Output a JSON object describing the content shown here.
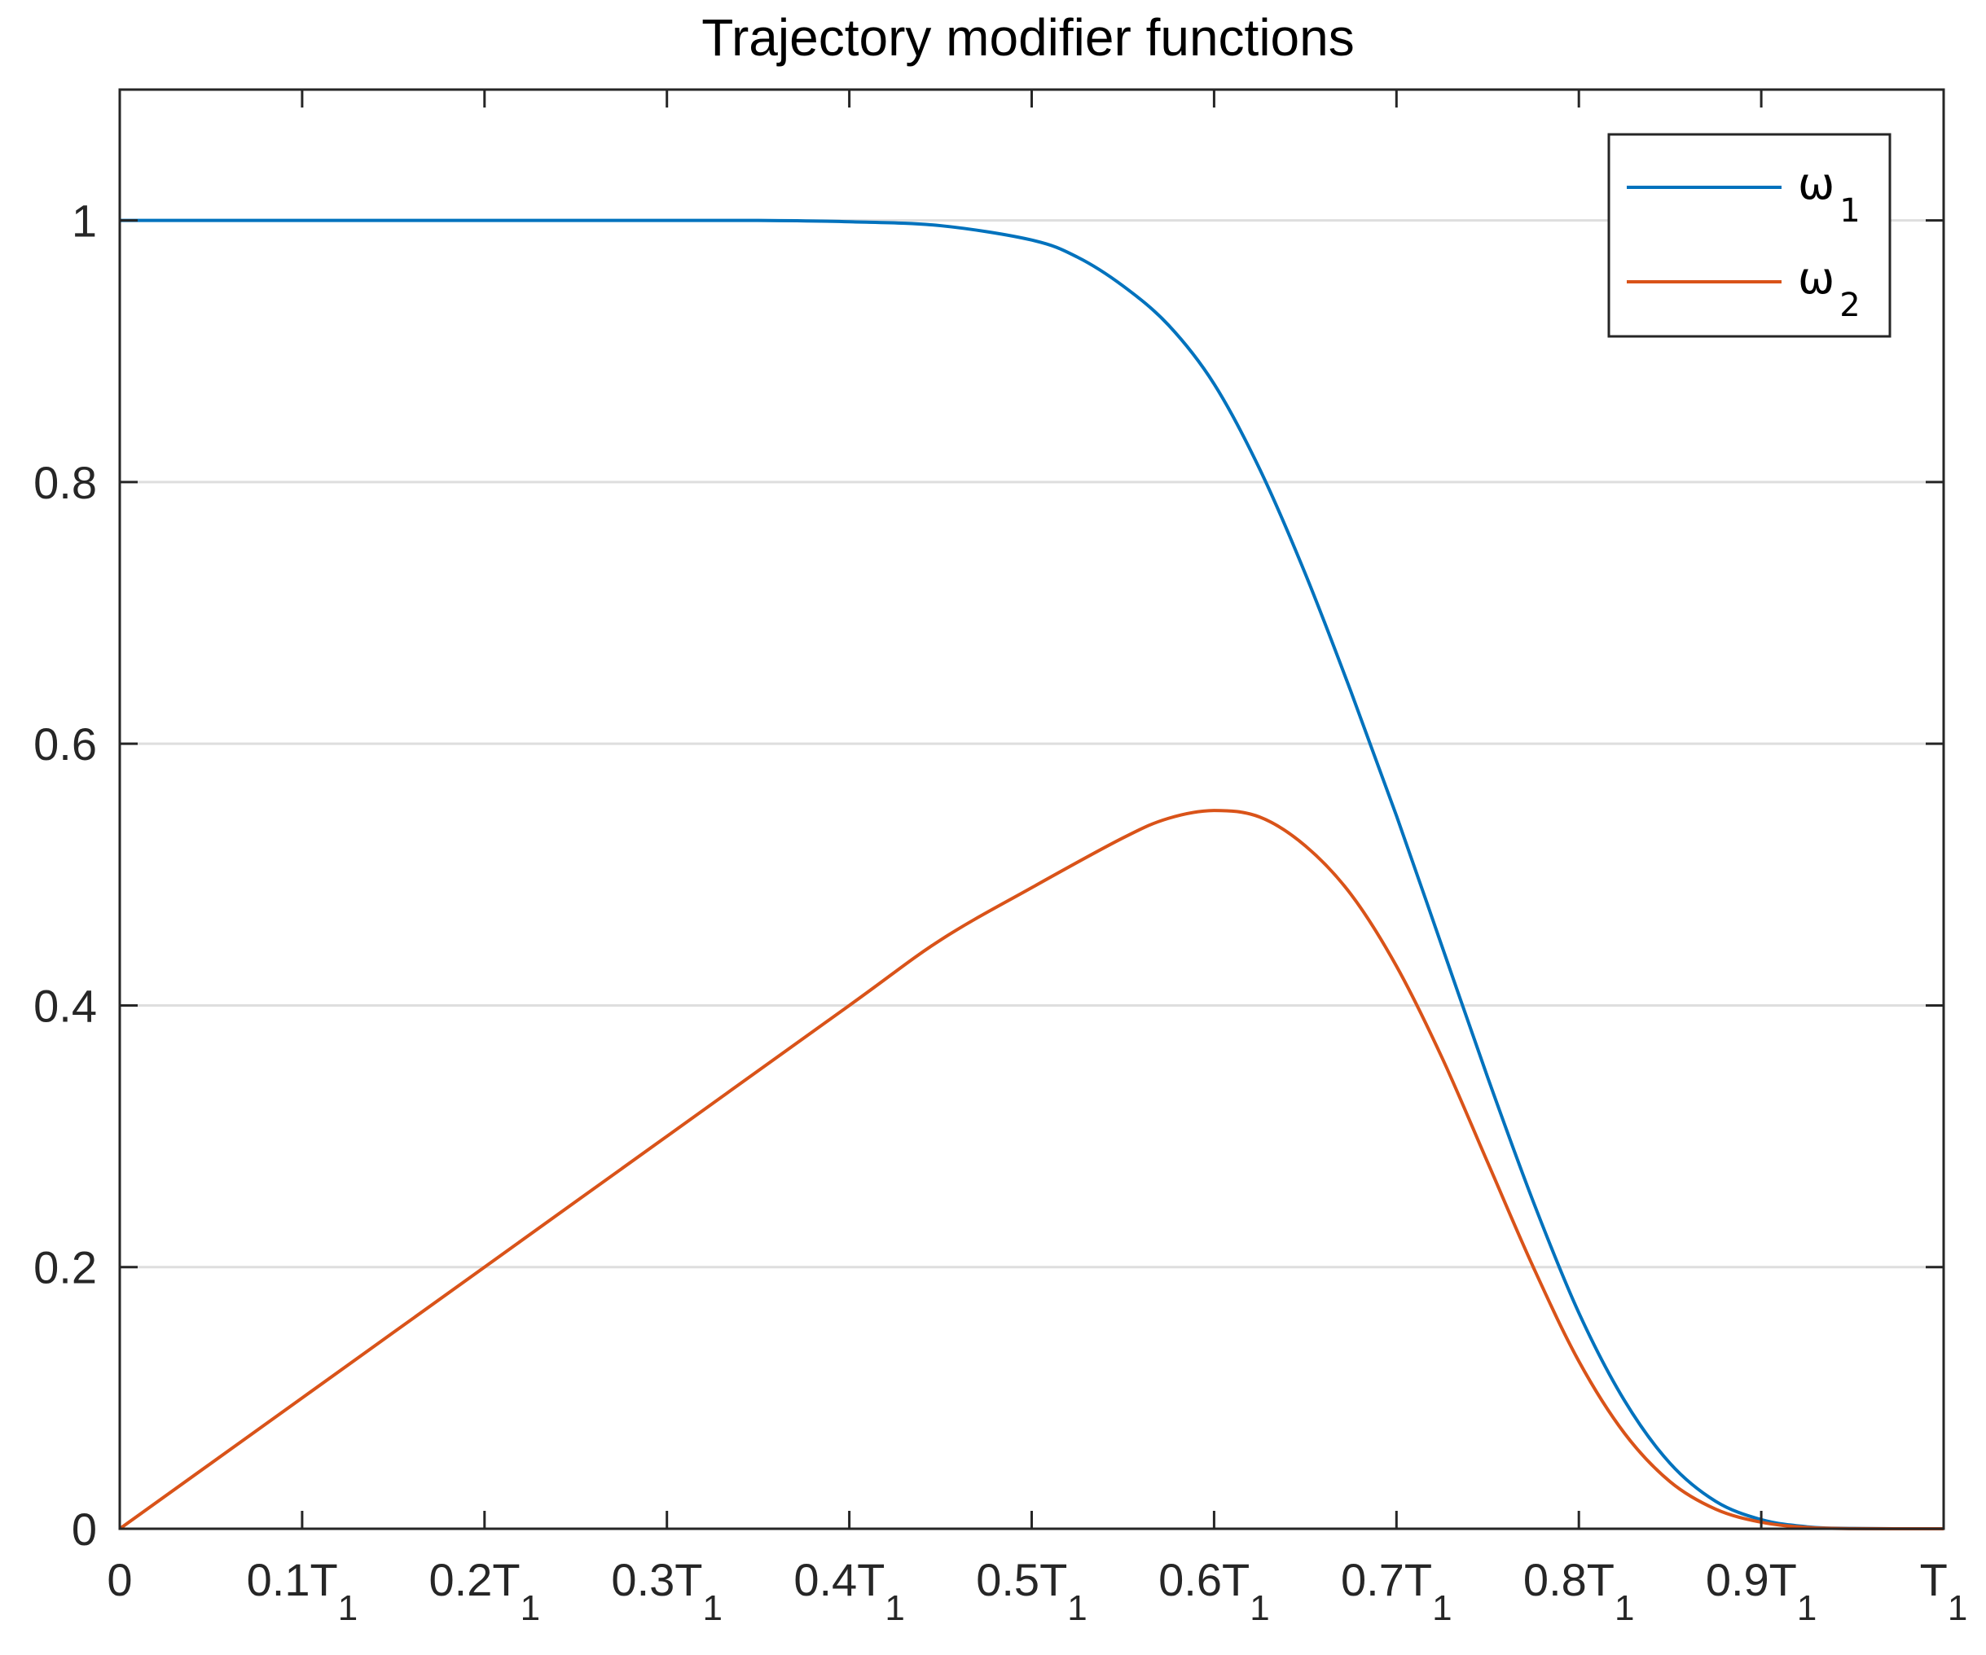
{
  "chart_data": {
    "type": "line",
    "title": "Trajectory modifier functions",
    "xlabel": "",
    "ylabel": "",
    "xlim": [
      0,
      1
    ],
    "ylim": [
      0,
      1.1
    ],
    "grid": "y-major",
    "legend_position": "top-right",
    "x_ticks": [
      {
        "value": 0,
        "label": "0",
        "sub": ""
      },
      {
        "value": 0.1,
        "label": "0.1T",
        "sub": "1"
      },
      {
        "value": 0.2,
        "label": "0.2T",
        "sub": "1"
      },
      {
        "value": 0.3,
        "label": "0.3T",
        "sub": "1"
      },
      {
        "value": 0.4,
        "label": "0.4T",
        "sub": "1"
      },
      {
        "value": 0.5,
        "label": "0.5T",
        "sub": "1"
      },
      {
        "value": 0.6,
        "label": "0.6T",
        "sub": "1"
      },
      {
        "value": 0.7,
        "label": "0.7T",
        "sub": "1"
      },
      {
        "value": 0.8,
        "label": "0.8T",
        "sub": "1"
      },
      {
        "value": 0.9,
        "label": "0.9T",
        "sub": "1"
      },
      {
        "value": 1.0,
        "label": "T",
        "sub": "1"
      }
    ],
    "y_ticks": [
      {
        "value": 0,
        "label": "0"
      },
      {
        "value": 0.2,
        "label": "0.2"
      },
      {
        "value": 0.4,
        "label": "0.4"
      },
      {
        "value": 0.6,
        "label": "0.6"
      },
      {
        "value": 0.8,
        "label": "0.8"
      },
      {
        "value": 1.0,
        "label": "1"
      }
    ],
    "series": [
      {
        "name": "ω",
        "name_sub": "1",
        "color": "#0072BD",
        "x": [
          0,
          0.1,
          0.2,
          0.3,
          0.35,
          0.4,
          0.45,
          0.5,
          0.525,
          0.55,
          0.575,
          0.6,
          0.625,
          0.65,
          0.675,
          0.7,
          0.725,
          0.75,
          0.775,
          0.8,
          0.825,
          0.85,
          0.875,
          0.9,
          0.925,
          0.95,
          1.0
        ],
        "y": [
          1.0,
          1.0,
          1.0,
          1.0,
          1.0,
          0.999,
          0.996,
          0.985,
          0.972,
          0.95,
          0.92,
          0.875,
          0.81,
          0.73,
          0.64,
          0.545,
          0.445,
          0.345,
          0.25,
          0.165,
          0.098,
          0.05,
          0.021,
          0.007,
          0.0015,
          0.0002,
          0.0
        ]
      },
      {
        "name": "ω",
        "name_sub": "2",
        "color": "#D95319",
        "x": [
          0,
          0.1,
          0.2,
          0.3,
          0.4,
          0.45,
          0.5,
          0.55,
          0.575,
          0.6,
          0.625,
          0.65,
          0.675,
          0.7,
          0.725,
          0.75,
          0.775,
          0.8,
          0.825,
          0.85,
          0.875,
          0.9,
          0.925,
          0.95,
          1.0
        ],
        "y": [
          0.0,
          0.1,
          0.2,
          0.3,
          0.4,
          0.45,
          0.49,
          0.528,
          0.543,
          0.549,
          0.544,
          0.522,
          0.485,
          0.43,
          0.36,
          0.28,
          0.2,
          0.128,
          0.073,
          0.036,
          0.015,
          0.005,
          0.001,
          0.0001,
          0.0
        ]
      }
    ]
  }
}
